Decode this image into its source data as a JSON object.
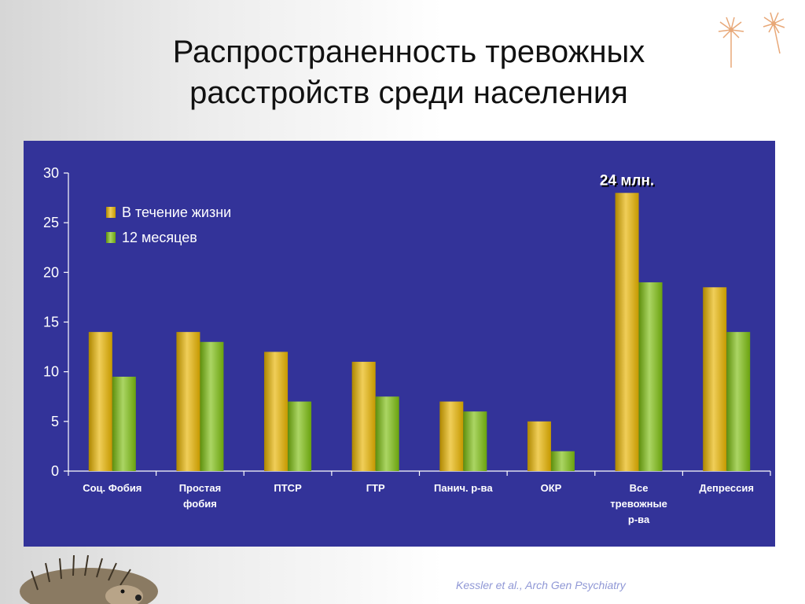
{
  "slide": {
    "title_line1": "Распространенность тревожных",
    "title_line2": "расстройств среди населения",
    "citation": "Kessler et al., Arch Gen Psychiatry"
  },
  "colors": {
    "panel": "#333399",
    "series_lifetime": "#E8B400",
    "series_12months": "#7DBE10",
    "axis": "#FFFFFF"
  },
  "chart_data": {
    "type": "bar",
    "title": "",
    "xlabel": "",
    "ylabel": "",
    "ylim": [
      0,
      30
    ],
    "yticks": [
      0,
      5,
      10,
      15,
      20,
      25,
      30
    ],
    "grid": false,
    "legend_position": "top-left",
    "categories": [
      [
        "Соц. Фобия"
      ],
      [
        "Простая",
        "фобия"
      ],
      [
        "ПТСР"
      ],
      [
        "ГТР"
      ],
      [
        "Панич. р-ва"
      ],
      [
        "ОКР"
      ],
      [
        "Все",
        "тревожные",
        "р-ва"
      ],
      [
        "Депрессия"
      ]
    ],
    "series": [
      {
        "name": "В течение жизни",
        "color": "#E8B400",
        "values": [
          14,
          14,
          12,
          11,
          7,
          5,
          28,
          18.5
        ]
      },
      {
        "name": "12 месяцев",
        "color": "#7DBE10",
        "values": [
          9.5,
          13,
          7,
          7.5,
          6,
          2,
          19,
          14
        ]
      }
    ],
    "annotations": [
      {
        "text": "24 млн.",
        "category_index": 6,
        "series_index": 0
      }
    ]
  }
}
